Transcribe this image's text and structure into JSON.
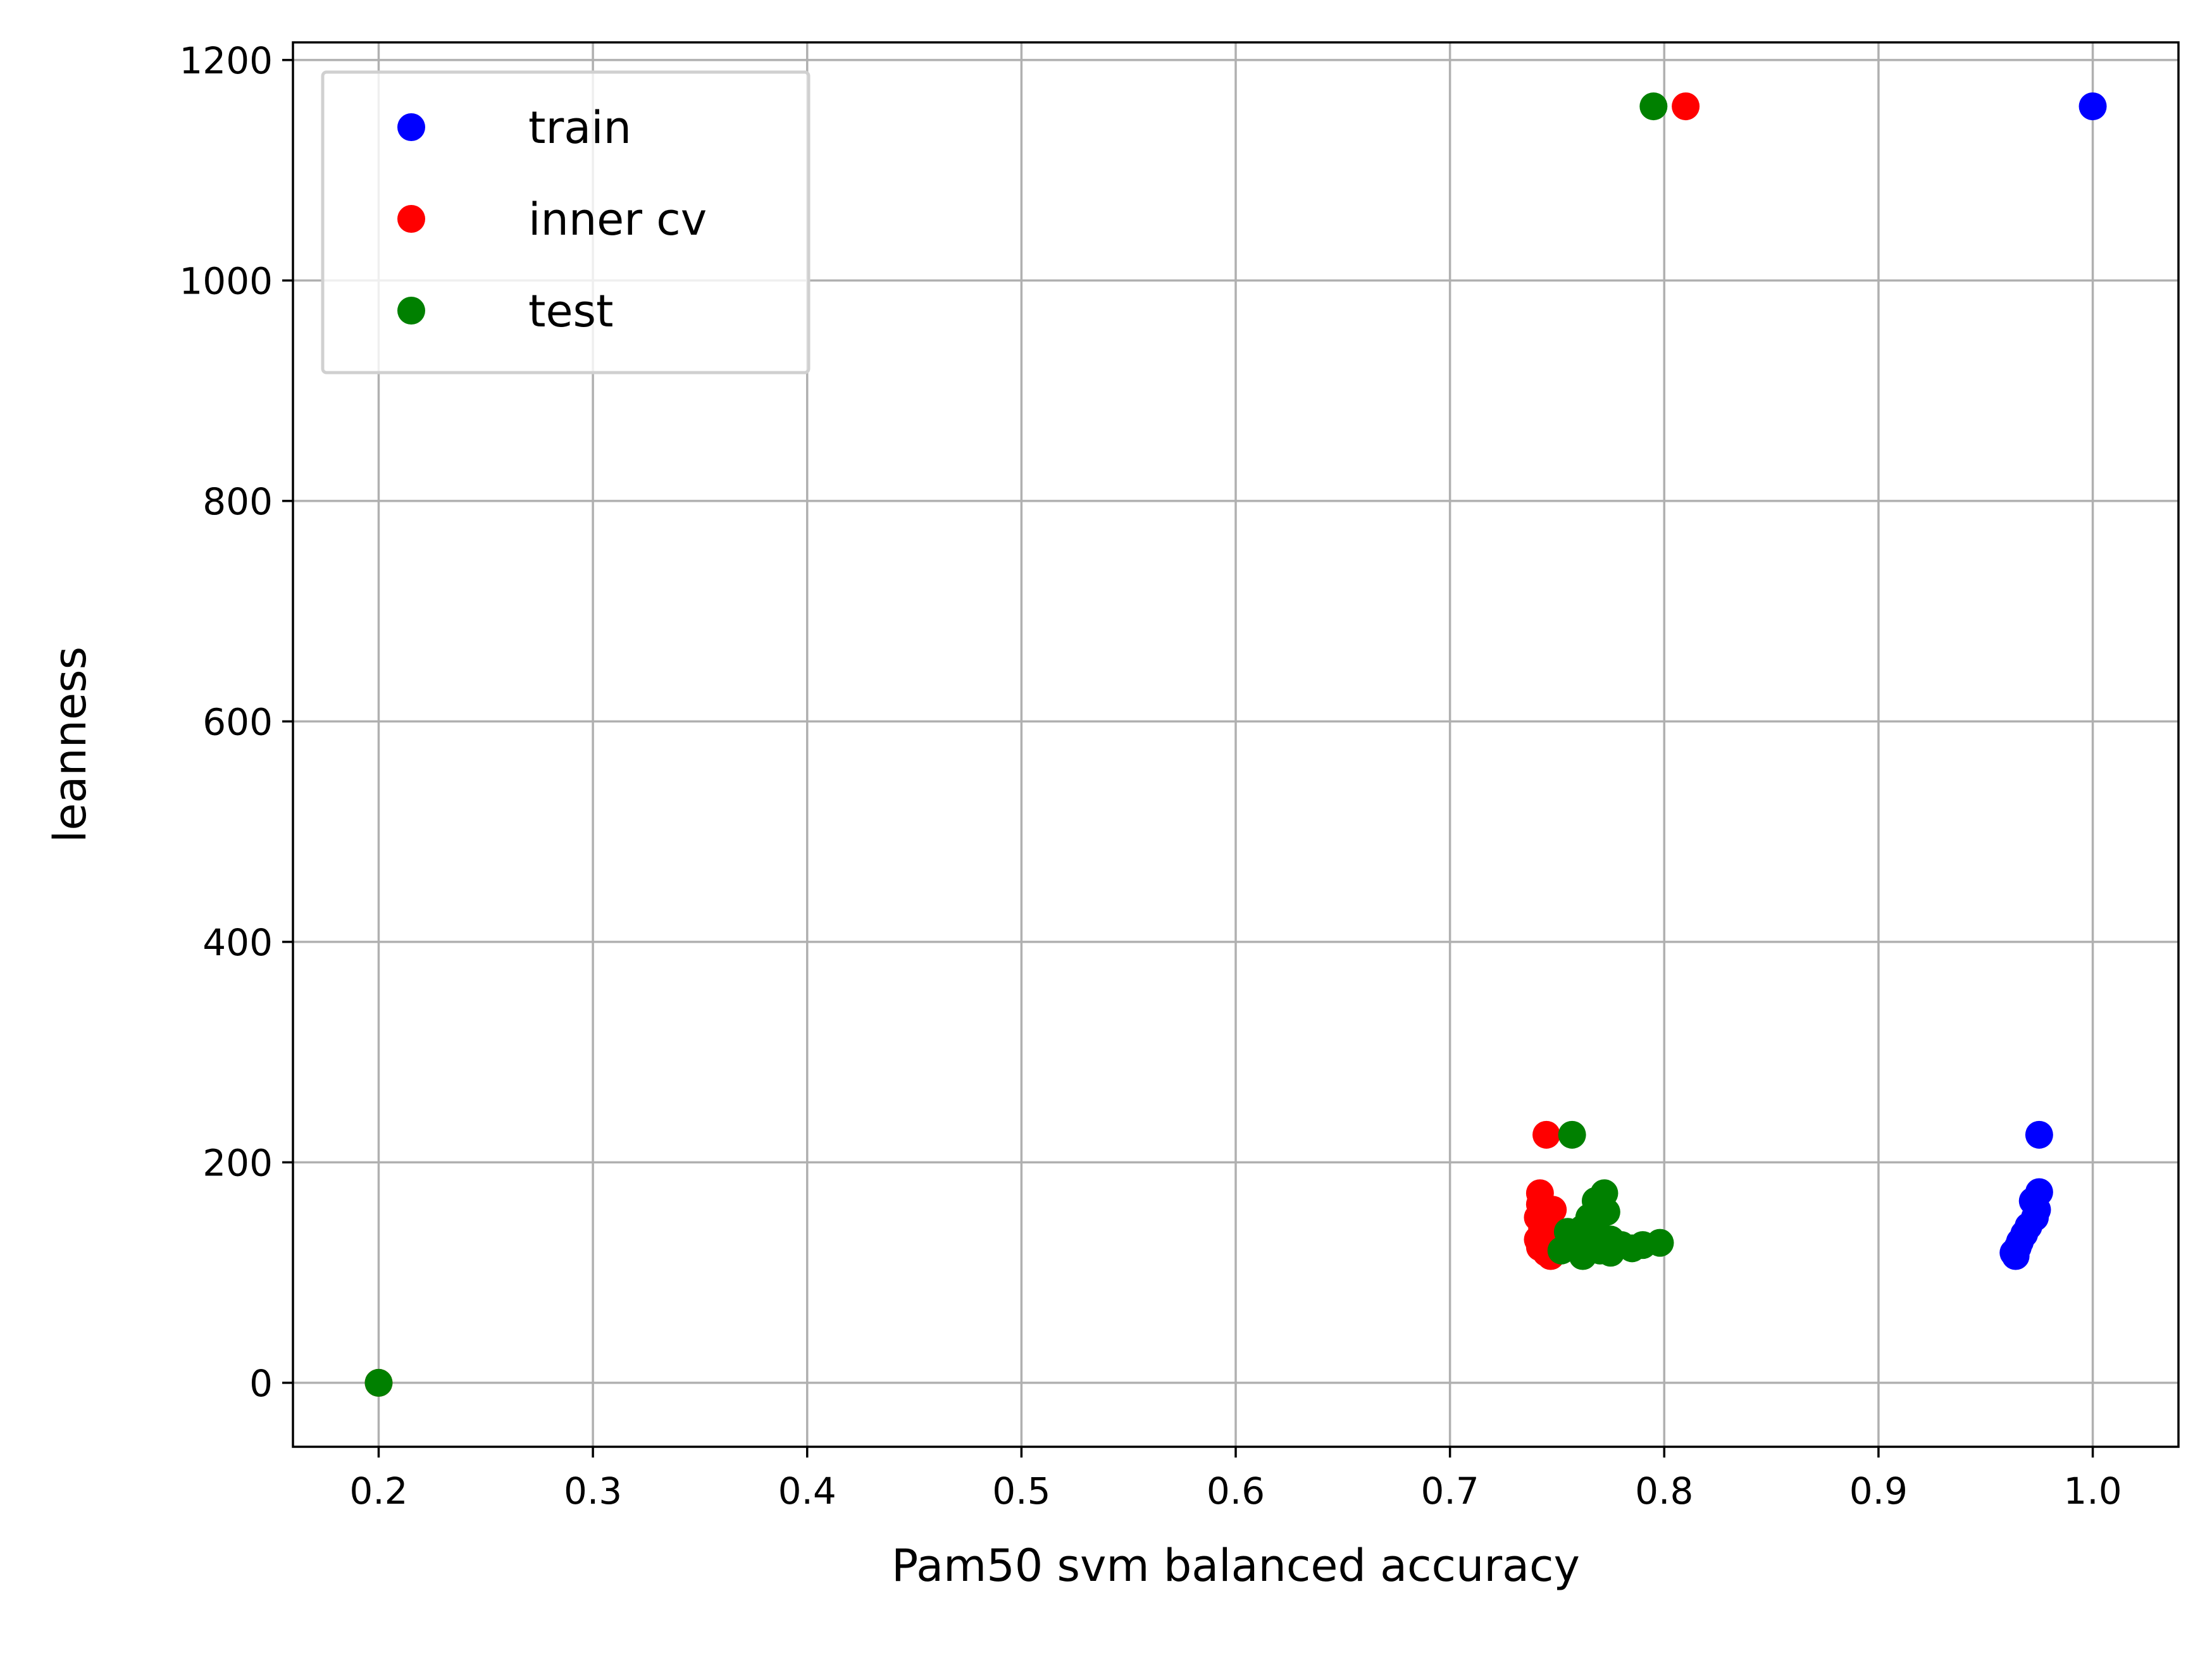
{
  "chart_data": {
    "type": "scatter",
    "title": "",
    "xlabel": "Pam50 svm balanced accuracy",
    "ylabel": "leanness",
    "xlim": [
      0.16,
      1.04
    ],
    "ylim": [
      -58,
      1216
    ],
    "xticks": [
      0.2,
      0.3,
      0.4,
      0.5,
      0.6,
      0.7,
      0.8,
      0.9,
      1.0
    ],
    "xtick_labels": [
      "0.2",
      "0.3",
      "0.4",
      "0.5",
      "0.6",
      "0.7",
      "0.8",
      "0.9",
      "1.0"
    ],
    "yticks": [
      0,
      200,
      400,
      600,
      800,
      1000,
      1200
    ],
    "ytick_labels": [
      "0",
      "200",
      "400",
      "600",
      "800",
      "1000",
      "1200"
    ],
    "grid": true,
    "legend_position": "top-left",
    "series": [
      {
        "name": "train",
        "color": "#0000ff",
        "points": [
          [
            1.0,
            1158
          ],
          [
            0.975,
            225
          ],
          [
            0.975,
            173
          ],
          [
            0.972,
            165
          ],
          [
            0.974,
            157
          ],
          [
            0.973,
            150
          ],
          [
            0.97,
            142
          ],
          [
            0.968,
            135
          ],
          [
            0.966,
            128
          ],
          [
            0.965,
            123
          ],
          [
            0.963,
            118
          ],
          [
            0.964,
            115
          ]
        ]
      },
      {
        "name": "inner cv",
        "color": "#ff0000",
        "points": [
          [
            0.2,
            0
          ],
          [
            0.81,
            1158
          ],
          [
            0.745,
            225
          ],
          [
            0.742,
            172
          ],
          [
            0.742,
            162
          ],
          [
            0.741,
            150
          ],
          [
            0.743,
            140
          ],
          [
            0.741,
            130
          ],
          [
            0.742,
            123
          ],
          [
            0.745,
            118
          ],
          [
            0.747,
            115
          ],
          [
            0.748,
            157
          ],
          [
            0.75,
            135
          ]
        ]
      },
      {
        "name": "test",
        "color": "#008000",
        "points": [
          [
            0.2,
            0
          ],
          [
            0.795,
            1158
          ],
          [
            0.757,
            225
          ],
          [
            0.772,
            172
          ],
          [
            0.768,
            165
          ],
          [
            0.77,
            160
          ],
          [
            0.765,
            150
          ],
          [
            0.773,
            155
          ],
          [
            0.768,
            142
          ],
          [
            0.762,
            140
          ],
          [
            0.755,
            137
          ],
          [
            0.76,
            128
          ],
          [
            0.765,
            125
          ],
          [
            0.775,
            130
          ],
          [
            0.78,
            125
          ],
          [
            0.785,
            122
          ],
          [
            0.79,
            125
          ],
          [
            0.798,
            127
          ],
          [
            0.775,
            118
          ],
          [
            0.762,
            115
          ],
          [
            0.77,
            120
          ],
          [
            0.752,
            120
          ],
          [
            0.758,
            132
          ]
        ]
      }
    ]
  }
}
